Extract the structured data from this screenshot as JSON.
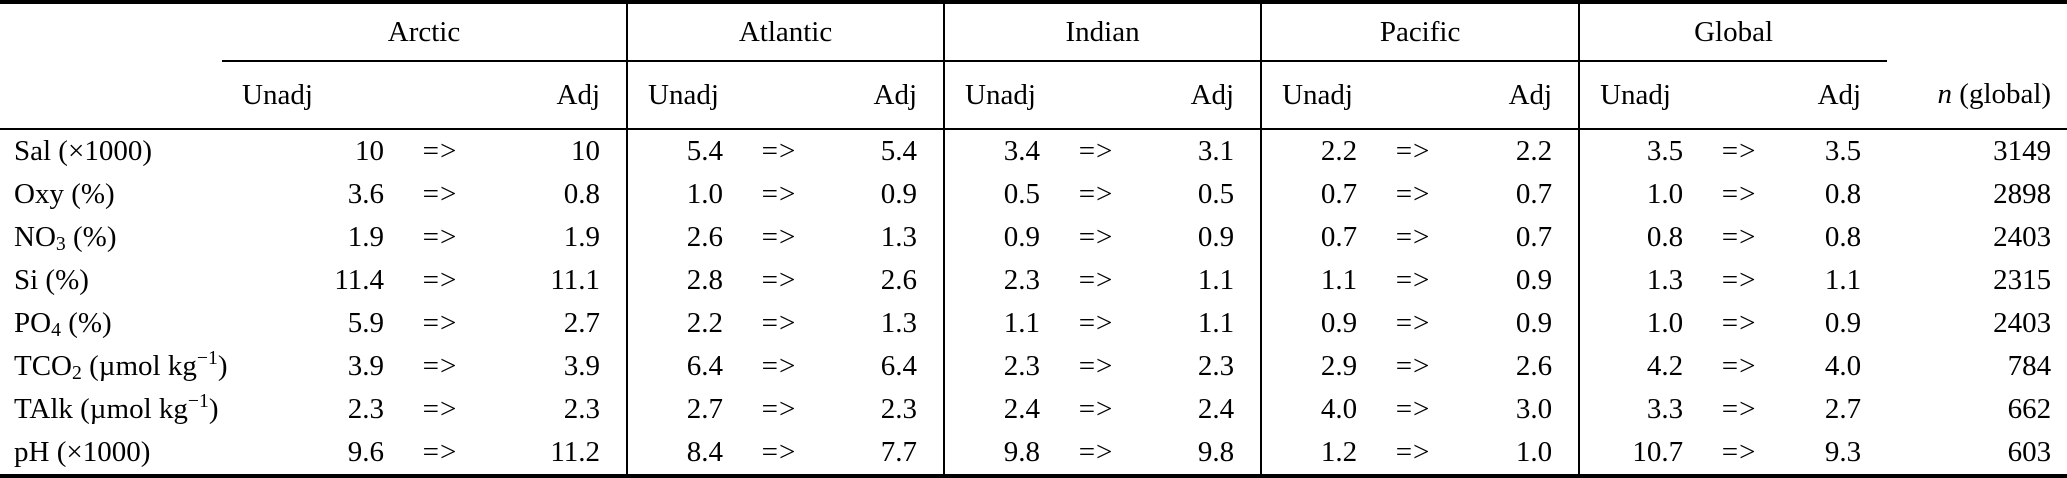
{
  "table": {
    "groups": [
      {
        "label": "Arctic"
      },
      {
        "label": "Atlantic"
      },
      {
        "label": "Indian"
      },
      {
        "label": "Pacific"
      },
      {
        "label": "Global"
      }
    ],
    "subheader": {
      "unadj": "Unadj",
      "adj": "Adj"
    },
    "n_header": {
      "italic": "n",
      "rest": " (global)"
    },
    "arrow": "=>",
    "colors": {
      "text": "#000000",
      "background": "#ffffff",
      "rule": "#000000"
    },
    "rows": [
      {
        "label": [
          {
            "text": "Sal (×1000)"
          }
        ],
        "values": [
          [
            "10",
            "10"
          ],
          [
            "5.4",
            "5.4"
          ],
          [
            "3.4",
            "3.1"
          ],
          [
            "2.2",
            "2.2"
          ],
          [
            "3.5",
            "3.5"
          ]
        ],
        "n": "3149"
      },
      {
        "label": [
          {
            "text": "Oxy (%)"
          }
        ],
        "values": [
          [
            "3.6",
            "0.8"
          ],
          [
            "1.0",
            "0.9"
          ],
          [
            "0.5",
            "0.5"
          ],
          [
            "0.7",
            "0.7"
          ],
          [
            "1.0",
            "0.8"
          ]
        ],
        "n": "2898"
      },
      {
        "label": [
          {
            "text": "NO"
          },
          {
            "sub": "3"
          },
          {
            "text": " (%)"
          }
        ],
        "values": [
          [
            "1.9",
            "1.9"
          ],
          [
            "2.6",
            "1.3"
          ],
          [
            "0.9",
            "0.9"
          ],
          [
            "0.7",
            "0.7"
          ],
          [
            "0.8",
            "0.8"
          ]
        ],
        "n": "2403"
      },
      {
        "label": [
          {
            "text": "Si (%)"
          }
        ],
        "values": [
          [
            "11.4",
            "11.1"
          ],
          [
            "2.8",
            "2.6"
          ],
          [
            "2.3",
            "1.1"
          ],
          [
            "1.1",
            "0.9"
          ],
          [
            "1.3",
            "1.1"
          ]
        ],
        "n": "2315"
      },
      {
        "label": [
          {
            "text": "PO"
          },
          {
            "sub": "4"
          },
          {
            "text": " (%)"
          }
        ],
        "values": [
          [
            "5.9",
            "2.7"
          ],
          [
            "2.2",
            "1.3"
          ],
          [
            "1.1",
            "1.1"
          ],
          [
            "0.9",
            "0.9"
          ],
          [
            "1.0",
            "0.9"
          ]
        ],
        "n": "2403"
      },
      {
        "label": [
          {
            "text": "TCO"
          },
          {
            "sub": "2"
          },
          {
            "text": " (µmol kg"
          },
          {
            "sup": "−1"
          },
          {
            "text": ")"
          }
        ],
        "values": [
          [
            "3.9",
            "3.9"
          ],
          [
            "6.4",
            "6.4"
          ],
          [
            "2.3",
            "2.3"
          ],
          [
            "2.9",
            "2.6"
          ],
          [
            "4.2",
            "4.0"
          ]
        ],
        "n": "784"
      },
      {
        "label": [
          {
            "text": "TAlk (µmol kg"
          },
          {
            "sup": "−1"
          },
          {
            "text": ")"
          }
        ],
        "values": [
          [
            "2.3",
            "2.3"
          ],
          [
            "2.7",
            "2.3"
          ],
          [
            "2.4",
            "2.4"
          ],
          [
            "4.0",
            "3.0"
          ],
          [
            "3.3",
            "2.7"
          ]
        ],
        "n": "662"
      },
      {
        "label": [
          {
            "text": "pH (×1000)"
          }
        ],
        "values": [
          [
            "9.6",
            "11.2"
          ],
          [
            "8.4",
            "7.7"
          ],
          [
            "9.8",
            "9.8"
          ],
          [
            "1.2",
            "1.0"
          ],
          [
            "10.7",
            "9.3"
          ]
        ],
        "n": "603"
      }
    ]
  }
}
